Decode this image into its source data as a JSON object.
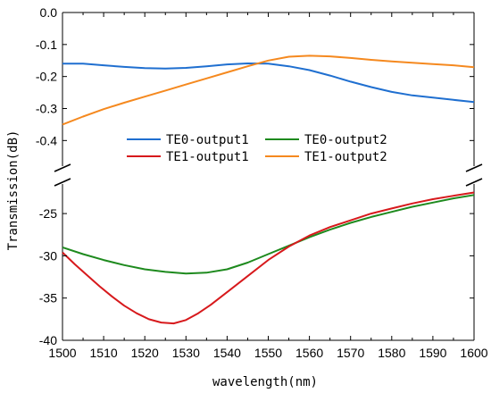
{
  "chart_data": {
    "type": "line",
    "xlabel": "wavelength(nm)",
    "ylabel": "Transmission(dB)",
    "xlim": [
      1500,
      1600
    ],
    "x_ticks": [
      "1500",
      "1510",
      "1520",
      "1530",
      "1540",
      "1550",
      "1560",
      "1570",
      "1580",
      "1590",
      "1600"
    ],
    "broken_y_axis": true,
    "top_panel": {
      "ylim": [
        -0.48,
        0.0
      ],
      "y_ticks": [
        "0.0",
        "-0.1",
        "-0.2",
        "-0.3",
        "-0.4"
      ]
    },
    "bottom_panel": {
      "ylim": [
        -40,
        -21.5
      ],
      "y_ticks": [
        "-25",
        "-30",
        "-35",
        "-40"
      ]
    },
    "grid": false,
    "legend_position": "center-right of top panel",
    "series": [
      {
        "name": "TE0-output1",
        "color": "#1f6fd0",
        "panel": "top",
        "x": [
          1500,
          1505,
          1510,
          1515,
          1520,
          1525,
          1530,
          1535,
          1540,
          1545,
          1550,
          1555,
          1560,
          1565,
          1570,
          1575,
          1580,
          1585,
          1590,
          1595,
          1600
        ],
        "y": [
          -0.16,
          -0.16,
          -0.165,
          -0.17,
          -0.174,
          -0.175,
          -0.173,
          -0.168,
          -0.162,
          -0.159,
          -0.16,
          -0.168,
          -0.18,
          -0.197,
          -0.216,
          -0.233,
          -0.248,
          -0.259,
          -0.266,
          -0.273,
          -0.28
        ]
      },
      {
        "name": "TE0-output2",
        "color": "#1e8a1e",
        "panel": "bottom",
        "x": [
          1500,
          1505,
          1510,
          1515,
          1520,
          1525,
          1530,
          1535,
          1540,
          1545,
          1550,
          1555,
          1560,
          1565,
          1570,
          1575,
          1580,
          1585,
          1590,
          1595,
          1600
        ],
        "y": [
          -29.0,
          -29.8,
          -30.5,
          -31.1,
          -31.6,
          -31.9,
          -32.1,
          -32.0,
          -31.6,
          -30.8,
          -29.8,
          -28.8,
          -27.8,
          -26.9,
          -26.1,
          -25.4,
          -24.8,
          -24.2,
          -23.7,
          -23.2,
          -22.8
        ]
      },
      {
        "name": "TE1-output1",
        "color": "#d7191c",
        "panel": "bottom",
        "x": [
          1500,
          1503,
          1506,
          1509,
          1512,
          1515,
          1518,
          1521,
          1524,
          1527,
          1530,
          1533,
          1536,
          1540,
          1545,
          1550,
          1555,
          1560,
          1565,
          1570,
          1575,
          1580,
          1585,
          1590,
          1595,
          1600
        ],
        "y": [
          -29.6,
          -31.0,
          -32.3,
          -33.6,
          -34.8,
          -35.9,
          -36.8,
          -37.5,
          -37.9,
          -38.0,
          -37.6,
          -36.8,
          -35.8,
          -34.3,
          -32.4,
          -30.5,
          -28.9,
          -27.6,
          -26.6,
          -25.8,
          -25.0,
          -24.4,
          -23.8,
          -23.3,
          -22.9,
          -22.5
        ]
      },
      {
        "name": "TE1-output2",
        "color": "#f5891f",
        "panel": "top",
        "x": [
          1500,
          1505,
          1510,
          1515,
          1520,
          1525,
          1530,
          1535,
          1540,
          1545,
          1550,
          1555,
          1560,
          1565,
          1570,
          1575,
          1580,
          1585,
          1590,
          1595,
          1600
        ],
        "y": [
          -0.35,
          -0.325,
          -0.302,
          -0.282,
          -0.263,
          -0.244,
          -0.225,
          -0.206,
          -0.187,
          -0.168,
          -0.15,
          -0.138,
          -0.135,
          -0.137,
          -0.142,
          -0.148,
          -0.153,
          -0.157,
          -0.161,
          -0.165,
          -0.171
        ]
      }
    ],
    "legend_layout": [
      [
        "TE0-output1",
        "TE0-output2"
      ],
      [
        "TE1-output1",
        "TE1-output2"
      ]
    ]
  }
}
